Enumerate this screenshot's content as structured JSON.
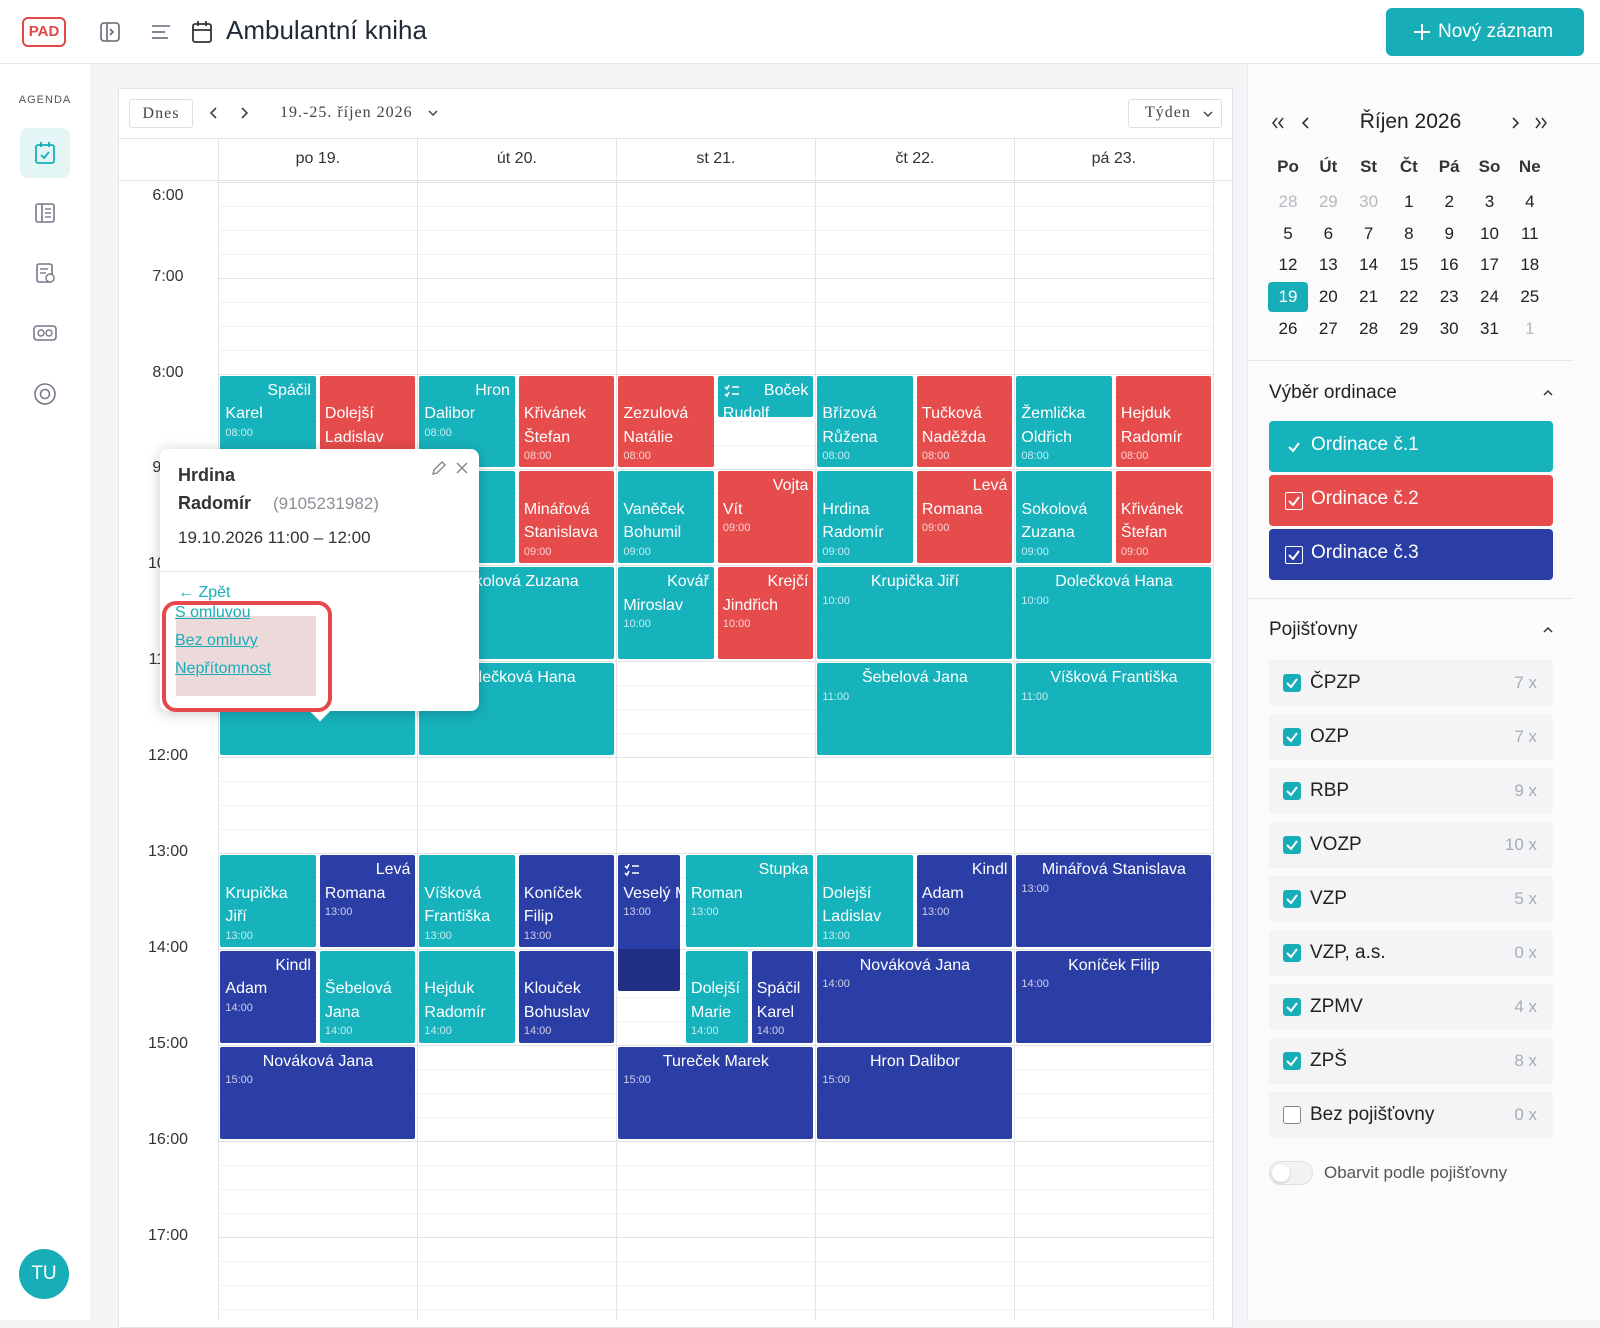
{
  "header": {
    "logo": "PAD",
    "title": "Ambulantní kniha",
    "new_button": "Nový záznam"
  },
  "sidebar": {
    "section": "AGENDA",
    "avatar": "TU"
  },
  "toolbar": {
    "today": "Dnes",
    "range": "19.-25. říjen 2026",
    "view": "Týden"
  },
  "calendar": {
    "hours": [
      "6:00",
      "7:00",
      "8:00",
      "9:00",
      "10:00",
      "11:00",
      "12:00",
      "13:00",
      "14:00",
      "15:00",
      "16:00",
      "17:00"
    ],
    "days": [
      {
        "label": "po 19.",
        "events": [
          {
            "name": "Spáčil Karel",
            "time": "08:00",
            "color": "#17b3bd"
          },
          {
            "name": "Dolejší Ladislav",
            "color": "#e64c4c"
          },
          {
            "name": "Krupička Jiří",
            "time": "13:00",
            "color": "#17b3bd"
          },
          {
            "name": "Levá Romana",
            "time": "13:00",
            "color": "#2b3ea6"
          },
          {
            "name": "Kindl Adam",
            "time": "14:00",
            "color": "#2b3ea6"
          },
          {
            "name": "Šebelová Jana",
            "time": "14:00",
            "color": "#17b3bd"
          },
          {
            "name": "Nováková Jana",
            "time": "15:00",
            "color": "#2b3ea6"
          }
        ]
      },
      {
        "label": "út 20.",
        "events": [
          {
            "name": "Hron Dalibor",
            "time": "08:00",
            "color": "#17b3bd"
          },
          {
            "name": "Křivánek Štefan",
            "time": "08:00",
            "color": "#e64c4c"
          },
          {
            "name": "Minářová Stanislava",
            "time": "09:00",
            "color": "#e64c4c"
          },
          {
            "name": "Sokolová Zuzana",
            "color": "#17b3bd"
          },
          {
            "name": "Dolečková Hana",
            "color": "#17b3bd"
          },
          {
            "name": "Víšková Františka",
            "time": "13:00",
            "color": "#17b3bd"
          },
          {
            "name": "Koníček Filip",
            "time": "13:00",
            "color": "#2b3ea6"
          },
          {
            "name": "Hejduk Radomír",
            "time": "14:00",
            "color": "#17b3bd"
          },
          {
            "name": "Klouček Bohuslav",
            "time": "14:00",
            "color": "#2b3ea6"
          }
        ]
      },
      {
        "label": "st 21.",
        "events": [
          {
            "name": "Zezulová Natálie",
            "time": "08:00",
            "color": "#e64c4c"
          },
          {
            "name": "Boček Rudolf",
            "color": "#17b3bd"
          },
          {
            "name": "Vaněček Bohumil",
            "time": "09:00",
            "color": "#17b3bd"
          },
          {
            "name": "Vojta Vít",
            "time": "09:00",
            "color": "#e64c4c"
          },
          {
            "name": "Kovář Miroslav",
            "time": "10:00",
            "color": "#17b3bd"
          },
          {
            "name": "Krejčí Jindřich",
            "time": "10:00",
            "color": "#e64c4c"
          },
          {
            "name": "Veselý Michael",
            "time": "13:00",
            "color": "#2b3ea6"
          },
          {
            "name": "Stupka Roman",
            "time": "13:00",
            "color": "#17b3bd"
          },
          {
            "name": "Dolejší Marie",
            "time": "14:00",
            "color": "#17b3bd"
          },
          {
            "name": "Spáčil Karel",
            "time": "14:00",
            "color": "#2b3ea6"
          },
          {
            "name": "Tureček Marek",
            "time": "15:00",
            "color": "#2b3ea6"
          }
        ]
      },
      {
        "label": "čt 22.",
        "events": [
          {
            "name": "Břízová Růžena",
            "time": "08:00",
            "color": "#17b3bd"
          },
          {
            "name": "Tučková Naděžda",
            "time": "08:00",
            "color": "#e64c4c"
          },
          {
            "name": "Hrdina Radomír",
            "time": "09:00",
            "color": "#17b3bd"
          },
          {
            "name": "Levá Romana",
            "time": "09:00",
            "color": "#e64c4c"
          },
          {
            "name": "Krupička Jiří",
            "time": "10:00",
            "color": "#17b3bd"
          },
          {
            "name": "Šebelová Jana",
            "time": "11:00",
            "color": "#17b3bd"
          },
          {
            "name": "Dolejší Ladislav",
            "time": "13:00",
            "color": "#17b3bd"
          },
          {
            "name": "Kindl Adam",
            "time": "13:00",
            "color": "#2b3ea6"
          },
          {
            "name": "Nováková Jana",
            "time": "14:00",
            "color": "#2b3ea6"
          },
          {
            "name": "Hron Dalibor",
            "time": "15:00",
            "color": "#2b3ea6"
          }
        ]
      },
      {
        "label": "pá 23.",
        "events": [
          {
            "name": "Žemlička Oldřich",
            "time": "08:00",
            "color": "#17b3bd"
          },
          {
            "name": "Hejduk Radomír",
            "time": "08:00",
            "color": "#e64c4c"
          },
          {
            "name": "Sokolová Zuzana",
            "time": "09:00",
            "color": "#17b3bd"
          },
          {
            "name": "Křivánek Štefan",
            "time": "09:00",
            "color": "#e64c4c"
          },
          {
            "name": "Dolečková Hana",
            "time": "10:00",
            "color": "#17b3bd"
          },
          {
            "name": "Víšková Františka",
            "time": "11:00",
            "color": "#17b3bd"
          },
          {
            "name": "Minářová Stanislava",
            "time": "13:00",
            "color": "#2b3ea6"
          },
          {
            "name": "Koníček Filip",
            "time": "14:00",
            "color": "#2b3ea6"
          }
        ]
      }
    ]
  },
  "popup": {
    "name": "Hrdina Radomír",
    "id": "(9105231982)",
    "datetime": "19.10.2026 11:00 – 12:00",
    "back": "← Zpět",
    "options": [
      "S omluvou",
      "Bez omluvy",
      "Nepřítomnost"
    ]
  },
  "mini_calendar": {
    "month": "Říjen 2026",
    "weekdays": [
      "Po",
      "Út",
      "St",
      "Čt",
      "Pá",
      "So",
      "Ne"
    ],
    "weeks": [
      [
        28,
        29,
        30,
        1,
        2,
        3,
        4
      ],
      [
        5,
        6,
        7,
        8,
        9,
        10,
        11
      ],
      [
        12,
        13,
        14,
        15,
        16,
        17,
        18
      ],
      [
        19,
        20,
        21,
        22,
        23,
        24,
        25
      ],
      [
        26,
        27,
        28,
        29,
        30,
        31,
        1
      ]
    ],
    "selected": 19
  },
  "ordinace": {
    "title": "Výběr ordinace",
    "items": [
      {
        "name": "Ordinace č.1",
        "color": "#17b3bd",
        "checked": true
      },
      {
        "name": "Ordinace č.2",
        "color": "#e64c4c",
        "checked": true
      },
      {
        "name": "Ordinace č.3",
        "color": "#2b3ea6",
        "checked": true
      }
    ]
  },
  "pojistovny": {
    "title": "Pojišťovny",
    "items": [
      {
        "name": "ČPZP",
        "count": "7 x",
        "checked": true
      },
      {
        "name": "OZP",
        "count": "7 x",
        "checked": true
      },
      {
        "name": "RBP",
        "count": "9 x",
        "checked": true
      },
      {
        "name": "VOZP",
        "count": "10 x",
        "checked": true
      },
      {
        "name": "VZP",
        "count": "5 x",
        "checked": true
      },
      {
        "name": "VZP, a.s.",
        "count": "0 x",
        "checked": true
      },
      {
        "name": "ZPMV",
        "count": "4 x",
        "checked": true
      },
      {
        "name": "ZPŠ",
        "count": "8 x",
        "checked": true
      },
      {
        "name": "Bez pojišťovny",
        "count": "0 x",
        "checked": false
      }
    ]
  },
  "toggle": {
    "label": "Obarvit podle pojišťovny",
    "on": false
  }
}
